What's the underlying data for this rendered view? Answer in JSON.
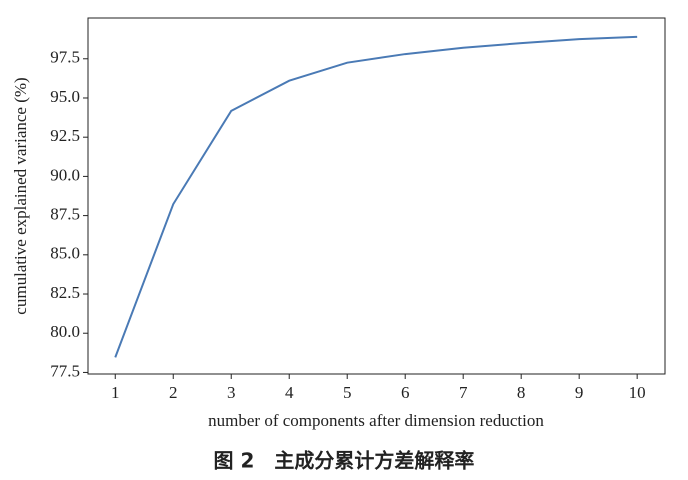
{
  "chart_data": {
    "type": "line",
    "xlabel": "number of components after dimension reduction",
    "ylabel": "cumulative explained variance (%)",
    "caption": "图 2　主成分累计方差解释率",
    "x": [
      1,
      2,
      3,
      4,
      5,
      6,
      7,
      8,
      9,
      10
    ],
    "series": [
      {
        "color": "#4a7ab5",
        "values": [
          78.46,
          88.23,
          94.18,
          96.1,
          97.25,
          97.8,
          98.2,
          98.5,
          98.75,
          98.9
        ]
      }
    ],
    "xlim": [
      0.53,
      10.48
    ],
    "xticks": [
      1,
      2,
      3,
      4,
      5,
      6,
      7,
      8,
      9,
      10
    ],
    "ylim": [
      77.4,
      100.1
    ],
    "yticks": [
      77.5,
      {
        "value": 80,
        "label": "80.0"
      },
      82.5,
      {
        "value": 85,
        "label": "85.0"
      },
      87.5,
      {
        "value": 90,
        "label": "90.0"
      },
      92.5,
      {
        "value": 95,
        "label": "95.0"
      },
      97.5
    ],
    "grid": false
  }
}
